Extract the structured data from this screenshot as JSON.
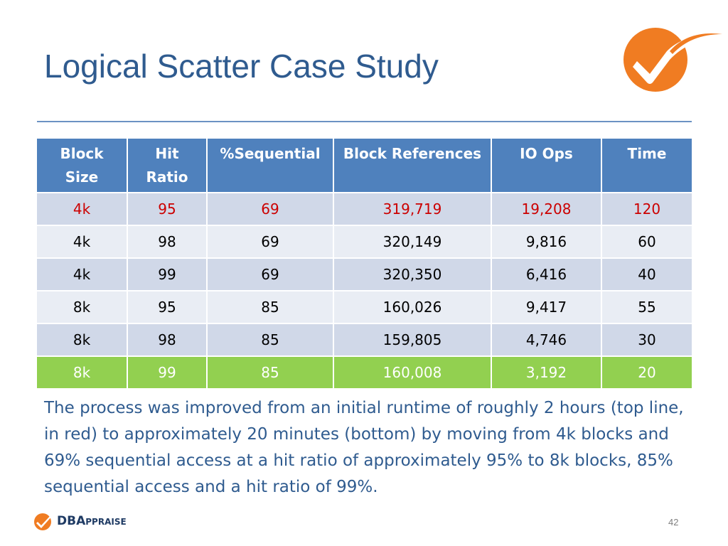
{
  "slide": {
    "title": "Logical Scatter Case Study",
    "page_number": "42",
    "caption": "The process was improved from an initial runtime of roughly 2 hours (top line, in red) to approximately 20 minutes (bottom) by moving from 4k blocks and 69% sequential access at a hit ratio of approximately 95% to 8k blocks, 85% sequential access and a hit ratio of 99%.",
    "brand": {
      "prefix": "DBA",
      "suffix": "PPRAISE"
    }
  },
  "colors": {
    "title": "#2f5b8f",
    "header_bg": "#4f81bd",
    "row_odd": "#d0d8e8",
    "row_even": "#e9edf4",
    "highlight_red": "#cc0000",
    "highlight_green": "#92d050",
    "logo_orange": "#f07c22"
  },
  "icons": [
    "orange-checkmark-logo-icon",
    "dbappraise-logo-icon"
  ],
  "table": {
    "headers": [
      [
        "Block",
        "Size"
      ],
      [
        "Hit",
        "Ratio"
      ],
      [
        "%Sequential"
      ],
      [
        "Block References"
      ],
      [
        "IO Ops"
      ],
      [
        "Time"
      ]
    ],
    "rows": [
      [
        "4k",
        "95",
        "69",
        "319,719",
        "19,208",
        "120"
      ],
      [
        "4k",
        "98",
        "69",
        "320,149",
        "9,816",
        "60"
      ],
      [
        "4k",
        "99",
        "69",
        "320,350",
        "6,416",
        "40"
      ],
      [
        "8k",
        "95",
        "85",
        "160,026",
        "9,417",
        "55"
      ],
      [
        "8k",
        "98",
        "85",
        "159,805",
        "4,746",
        "30"
      ],
      [
        "8k",
        "99",
        "85",
        "160,008",
        "3,192",
        "20"
      ]
    ]
  }
}
